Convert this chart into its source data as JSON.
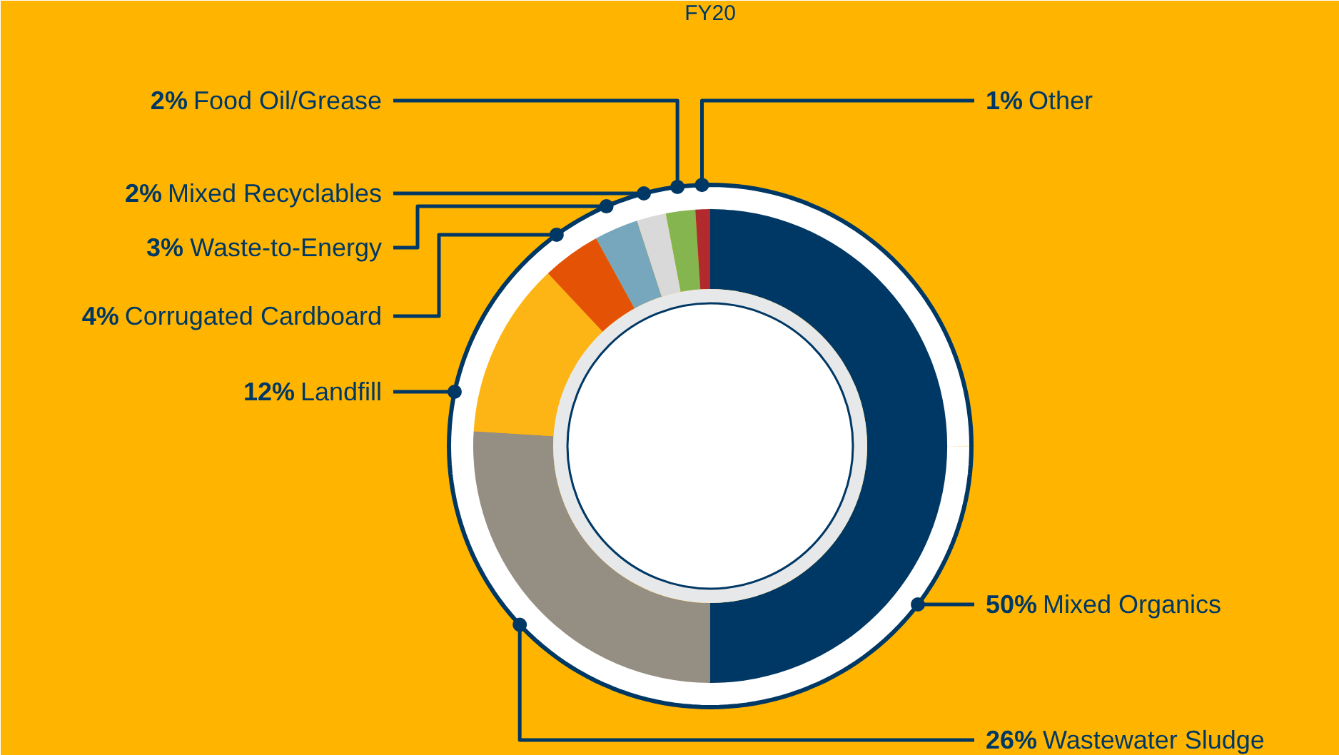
{
  "chart_data": {
    "type": "donut",
    "title": "FY20",
    "categories": [
      "Mixed Organics",
      "Wastewater Sludge",
      "Landfill",
      "Corrugated Cardboard",
      "Waste-to-Energy",
      "Mixed Recyclables",
      "Food Oil/Grease",
      "Other"
    ],
    "values": [
      50,
      26,
      12,
      4,
      3,
      2,
      2,
      1
    ],
    "colors": [
      "#003865",
      "#958e83",
      "#fdb515",
      "#e35205",
      "#76a7bd",
      "#d9d9d9",
      "#84b54f",
      "#b12a2e"
    ],
    "data_labels": true,
    "value_labels": [
      "50%",
      "26%",
      "12%",
      "4%",
      "3%",
      "2%",
      "2%",
      "1%"
    ]
  }
}
